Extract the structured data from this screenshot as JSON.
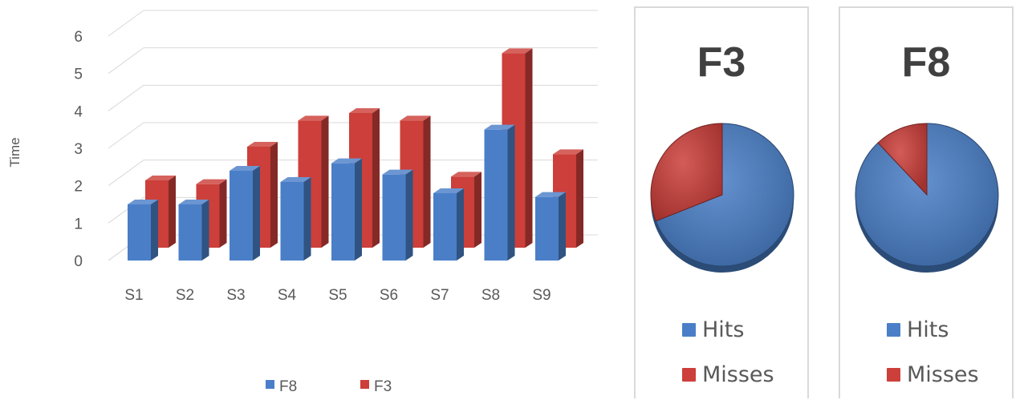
{
  "colors": {
    "F8": "#4a7fc8",
    "F3": "#cc3f3a",
    "hits": "#4a7fc8",
    "misses": "#cc3f3a",
    "grid": "#d9d9d9",
    "axis_text": "#595959"
  },
  "chart_data": [
    {
      "type": "bar",
      "title": "",
      "xlabel": "",
      "ylabel": "Time",
      "ylim": [
        0,
        6
      ],
      "yticks": [
        "0",
        "1",
        "2",
        "3",
        "4",
        "5",
        "6"
      ],
      "categories": [
        "S1",
        "S2",
        "S3",
        "S4",
        "S5",
        "S6",
        "S7",
        "S8",
        "S9"
      ],
      "series": [
        {
          "name": "F8",
          "values": [
            1.5,
            1.5,
            2.4,
            2.1,
            2.6,
            2.3,
            1.8,
            3.5,
            1.7
          ]
        },
        {
          "name": "F3",
          "values": [
            1.8,
            1.7,
            2.7,
            3.4,
            3.6,
            3.4,
            1.9,
            5.2,
            2.5
          ]
        }
      ],
      "legend_position": "bottom",
      "grid": true
    },
    {
      "type": "pie",
      "title": "F3",
      "labels": [
        "Hits",
        "Misses"
      ],
      "values": [
        0.69,
        0.31
      ],
      "legend_position": "bottom"
    },
    {
      "type": "pie",
      "title": "F8",
      "labels": [
        "Hits",
        "Misses"
      ],
      "values": [
        0.88,
        0.12
      ],
      "legend_position": "bottom"
    }
  ]
}
